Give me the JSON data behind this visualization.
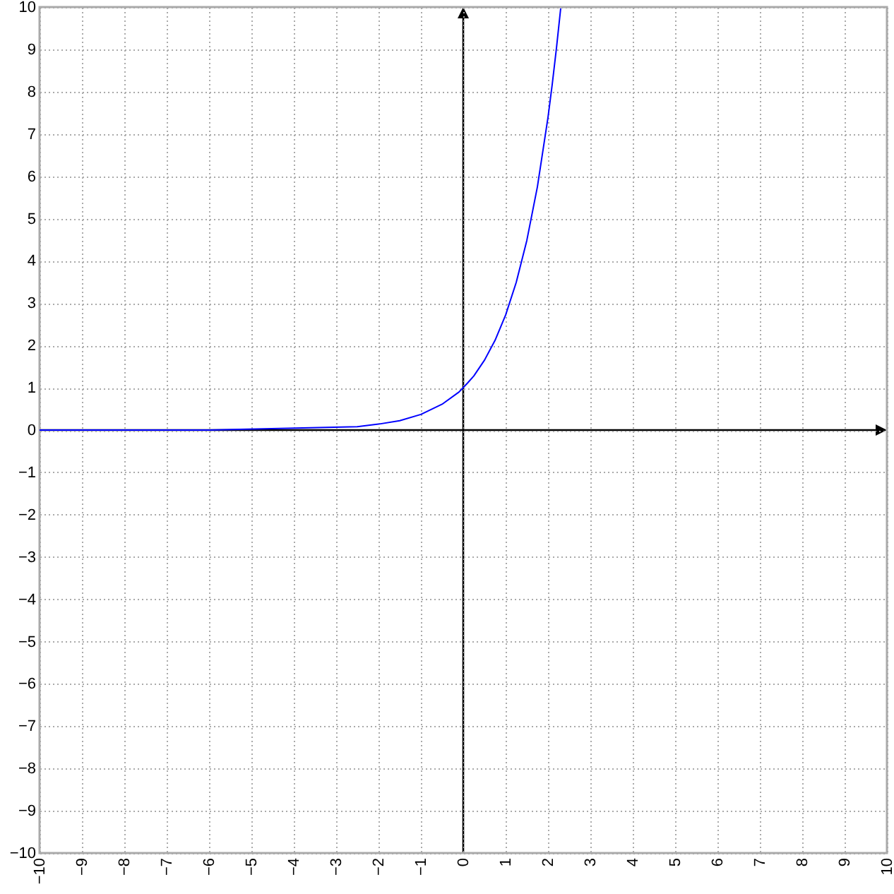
{
  "chart_data": {
    "type": "line",
    "x": [
      -10,
      -6,
      -2.5,
      -2,
      -1.5,
      -1,
      -0.5,
      -0.1,
      0.1,
      0.25,
      0.5,
      0.75,
      1,
      1.25,
      1.5,
      1.75,
      2,
      2.1,
      2.2,
      2.3
    ],
    "series": [
      {
        "color": "#0000ff",
        "values": [
          0,
          0,
          0.08,
          0.14,
          0.22,
          0.37,
          0.61,
          0.9,
          1.11,
          1.28,
          1.65,
          2.12,
          2.72,
          3.49,
          4.48,
          5.75,
          7.39,
          8.17,
          9.03,
          9.97
        ]
      }
    ],
    "xlim": [
      -10,
      10
    ],
    "xticks": [
      -10,
      -9,
      -8,
      -7,
      -6,
      -5,
      -4,
      -3,
      -2,
      -1,
      0,
      1,
      2,
      3,
      4,
      5,
      6,
      7,
      8,
      9,
      10
    ],
    "ylim": [
      -10,
      10
    ],
    "yticks": [
      -10,
      -9,
      -8,
      -7,
      -6,
      -5,
      -4,
      -3,
      -2,
      -1,
      0,
      1,
      2,
      3,
      4,
      5,
      6,
      7,
      8,
      9,
      10
    ],
    "grid": true,
    "marker": "none",
    "line_style": "solid"
  }
}
